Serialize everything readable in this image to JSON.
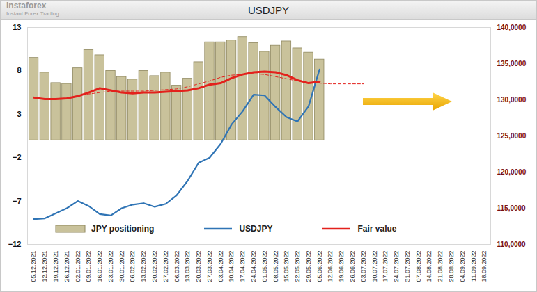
{
  "chart_data": {
    "type": "bar+line",
    "title": "USDJPY",
    "annotations": [
      "instaforex",
      "Instant Forex Trading"
    ],
    "categories": [
      "05.12.2021",
      "12.12.2021",
      "19.12.2021",
      "26.12.2021",
      "02.01.2022",
      "09.01.2022",
      "16.01.2022",
      "23.01.2022",
      "30.01.2022",
      "06.02.2022",
      "13.02.2022",
      "20.02.2022",
      "27.02.2022",
      "06.03.2022",
      "13.03.2022",
      "20.03.2022",
      "27.03.2022",
      "03.04.2022",
      "10.04.2022",
      "17.04.2022",
      "24.04.2022",
      "01.05.2022",
      "08.05.2022",
      "15.05.2022",
      "22.05.2022",
      "29.05.2022",
      "05.06.2022",
      "12.06.2022",
      "19.06.2022",
      "26.06.2022",
      "03.07.2022",
      "10.07.2022",
      "17.07.2022",
      "24.07.2022",
      "31.07.2022",
      "07.08.2022",
      "14.08.2022",
      "21.08.2022",
      "28.08.2022",
      "04.09.2022",
      "11.09.2022",
      "18.09.2022"
    ],
    "ylim": [
      -12,
      13
    ],
    "yticks": [
      -12,
      -7,
      -2,
      3,
      8,
      13
    ],
    "y2lim": [
      110,
      140
    ],
    "y2ticks": [
      {
        "value": 110,
        "label": "110,0000"
      },
      {
        "value": 115,
        "label": "115,0000"
      },
      {
        "value": 120,
        "label": "120,0000"
      },
      {
        "value": 125,
        "label": "125,0000"
      },
      {
        "value": 130,
        "label": "130,0000"
      },
      {
        "value": 135,
        "label": "135,0000"
      },
      {
        "value": 140,
        "label": "140,0000"
      }
    ],
    "legend": "bottom",
    "series": [
      {
        "name": "JPY positioning",
        "type": "bar",
        "color": "#c9c29b",
        "values": [
          9.5,
          7.8,
          6.6,
          6.5,
          8.3,
          10.4,
          9.8,
          8.0,
          7.3,
          7.0,
          8.0,
          7.4,
          7.8,
          6.3,
          7.1,
          9.0,
          11.3,
          11.3,
          11.5,
          11.9,
          11.2,
          10.2,
          10.9,
          11.4,
          10.6,
          10.1,
          9.3,
          null,
          null,
          null,
          null,
          null,
          null,
          null,
          null,
          null,
          null,
          null,
          null,
          null,
          null,
          null
        ]
      },
      {
        "name": "USDJPY",
        "type": "line",
        "axis": "y2",
        "color": "#2f74b5",
        "line_style": "solid",
        "values": [
          113.5,
          113.6,
          114.3,
          115.0,
          116.0,
          115.3,
          114.2,
          114.0,
          115.0,
          115.5,
          115.7,
          115.2,
          115.6,
          116.8,
          118.8,
          121.3,
          122.0,
          123.9,
          126.6,
          128.4,
          130.7,
          130.6,
          129.0,
          127.6,
          127.0,
          129.1,
          134.2,
          null,
          null,
          null,
          null,
          null,
          null,
          null,
          null,
          null,
          null,
          null,
          null,
          null,
          null,
          null
        ]
      },
      {
        "name": "Fair value",
        "type": "line",
        "axis": "y2",
        "color": "#e3211c",
        "line_style": "solid",
        "values": [
          130.3,
          130.1,
          130.1,
          130.2,
          130.5,
          131.0,
          131.6,
          131.3,
          131.0,
          130.9,
          131.0,
          131.0,
          131.1,
          131.2,
          131.3,
          131.6,
          132.1,
          132.3,
          133.0,
          133.5,
          133.8,
          133.9,
          133.8,
          133.4,
          132.7,
          132.3,
          132.5,
          null,
          null,
          null,
          null,
          null,
          null,
          null,
          null,
          null,
          null,
          null,
          null,
          null,
          null,
          null
        ]
      },
      {
        "name": "Fair value",
        "type": "line",
        "axis": "y2",
        "color": "#e3211c",
        "line_style": "dashed",
        "values": [
          null,
          null,
          null,
          null,
          130.6,
          130.8,
          131.0,
          131.2,
          131.2,
          131.2,
          131.2,
          131.3,
          131.4,
          131.5,
          131.8,
          132.2,
          132.6,
          133.1,
          133.4,
          133.5,
          133.6,
          133.5,
          133.2,
          132.9,
          132.6,
          132.4,
          132.3,
          132.2,
          132.2,
          132.2,
          132.2,
          null,
          null,
          null,
          null,
          null,
          null,
          null,
          null,
          null,
          null,
          null
        ]
      }
    ]
  }
}
